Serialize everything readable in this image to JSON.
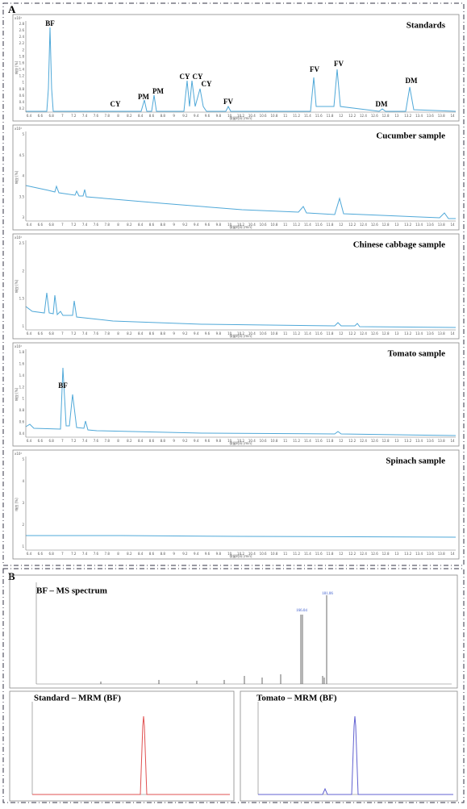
{
  "panel_a": {
    "label": "A",
    "x_axis_label": "保留时间 [min]",
    "y_axis_label": "响应 [%]",
    "exponent": "x10²",
    "x_ticks": [
      "6.4",
      "6.6",
      "6.8",
      "7",
      "7.2",
      "7.4",
      "7.6",
      "7.8",
      "8",
      "8.2",
      "8.4",
      "8.6",
      "8.8",
      "9",
      "9.2",
      "9.4",
      "9.6",
      "9.8",
      "10",
      "10.2",
      "10.4",
      "10.6",
      "10.8",
      "11",
      "11.2",
      "11.4",
      "11.6",
      "11.8",
      "12",
      "12.2",
      "12.4",
      "12.6",
      "12.8",
      "13",
      "13.2",
      "13.4",
      "13.6",
      "13.8",
      "14"
    ],
    "charts": [
      {
        "title": "Standards",
        "y_ticks": [
          "0.2",
          "0.4",
          "0.6",
          "0.8",
          "1",
          "1.2",
          "1.4",
          "1.6",
          "1.8",
          "2",
          "2.2",
          "2.4",
          "2.6",
          "2.8"
        ],
        "peaks": [
          "BF",
          "CY",
          "PM",
          "PM",
          "CY",
          "CY",
          "CY",
          "FV",
          "FV",
          "FV",
          "DM",
          "DM"
        ]
      },
      {
        "title": "Cucumber sample",
        "y_ticks": [
          "3",
          "3.5",
          "4",
          "4.5",
          "5"
        ],
        "peaks": []
      },
      {
        "title": "Chinese cabbage sample",
        "y_ticks": [
          "1",
          "1.5",
          "2",
          "2.5"
        ],
        "peaks": []
      },
      {
        "title": "Tomato sample",
        "y_ticks": [
          "0.4",
          "0.6",
          "0.8",
          "1",
          "1.2",
          "1.4",
          "1.6",
          "1.8"
        ],
        "peaks": [
          "BF"
        ]
      },
      {
        "title": "Spinach sample",
        "y_ticks": [
          "1",
          "2",
          "3",
          "4",
          "5"
        ],
        "peaks": []
      }
    ]
  },
  "panel_b": {
    "label": "B",
    "spectrum": {
      "title": "BF – MS spectrum",
      "peak_labels": [
        "166.04",
        "181.06"
      ]
    },
    "mrm_standard": {
      "title": "Standard – MRM (BF)"
    },
    "mrm_tomato": {
      "title": "Tomato – MRM (BF)"
    }
  }
}
